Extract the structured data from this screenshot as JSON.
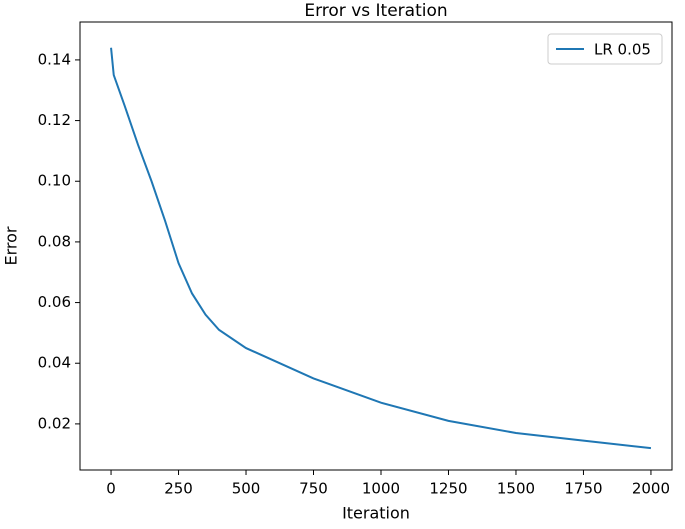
{
  "chart_data": {
    "type": "line",
    "title": "Error vs Iteration",
    "x_label": "Iteration",
    "y_label": "Error",
    "x": [
      0,
      10,
      50,
      100,
      150,
      200,
      250,
      300,
      350,
      400,
      500,
      600,
      750,
      1000,
      1250,
      1500,
      1750,
      2000
    ],
    "series": [
      {
        "name": "LR 0.05",
        "color": "#1f77b4",
        "values": [
          0.144,
          0.135,
          0.125,
          0.112,
          0.1,
          0.087,
          0.073,
          0.063,
          0.056,
          0.051,
          0.045,
          0.041,
          0.035,
          0.027,
          0.021,
          0.017,
          0.0145,
          0.012
        ]
      }
    ],
    "xlim": [
      -115,
      2078
    ],
    "ylim": [
      0.0048,
      0.1525
    ],
    "xticks": [
      0,
      250,
      500,
      750,
      1000,
      1250,
      1500,
      1750,
      2000
    ],
    "yticks": [
      0.02,
      0.04,
      0.06,
      0.08,
      {
        "value": 0.1,
        "label": "0.10"
      },
      0.12,
      0.14
    ],
    "legend": "upper right",
    "grid": false
  }
}
